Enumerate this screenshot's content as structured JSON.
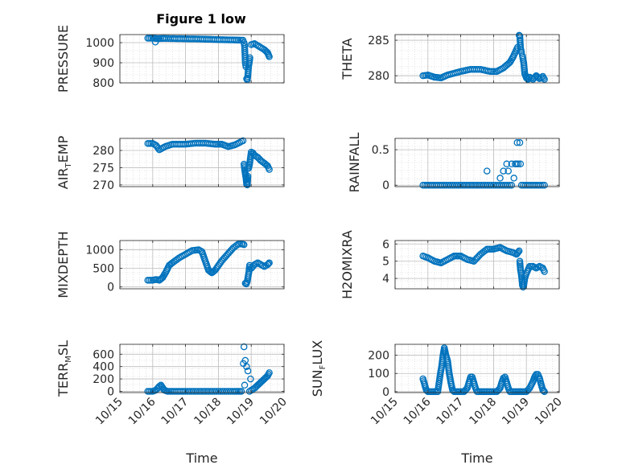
{
  "title": "Figure 1 low",
  "marker_color": "#0072bd",
  "xaxis": {
    "label": "Time",
    "range": [
      0,
      5
    ],
    "ticks": [
      0,
      1,
      2,
      3,
      4,
      5
    ],
    "tick_labels": [
      "10/15",
      "10/16",
      "10/17",
      "10/18",
      "10/19",
      "10/20"
    ]
  },
  "chart_data": [
    {
      "type": "scatter",
      "name": "pressure",
      "ylabel": "PRESSURE",
      "ylim": [
        800,
        1040
      ],
      "yticks": [
        800,
        900,
        1000
      ],
      "ytick_labels": [
        "800",
        "900",
        "1000"
      ],
      "segments": [
        {
          "x": [
            0.85,
            1.0,
            1.15,
            1.35,
            1.6,
            2.0,
            2.4,
            2.8,
            3.2,
            3.55,
            3.75
          ],
          "y": [
            1022,
            1022,
            1020,
            1021,
            1020,
            1019,
            1018,
            1016,
            1014,
            1013,
            1012
          ]
        },
        {
          "x": [
            3.78,
            3.8,
            3.82,
            3.84
          ],
          "y": [
            1000,
            980,
            900,
            880
          ]
        },
        {
          "x": [
            3.86,
            3.88,
            3.9,
            3.92,
            3.94,
            3.96
          ],
          "y": [
            820,
            815,
            840,
            880,
            900,
            925
          ]
        },
        {
          "x": [
            4.0,
            4.1,
            4.2,
            4.3,
            4.4,
            4.5,
            4.55
          ],
          "y": [
            990,
            995,
            985,
            975,
            965,
            950,
            930
          ]
        }
      ],
      "points": [
        {
          "x": 1.08,
          "y": 1003
        }
      ]
    },
    {
      "type": "scatter",
      "name": "theta",
      "ylabel": "THETA",
      "ylim": [
        279,
        285.8
      ],
      "yticks": [
        280,
        285
      ],
      "ytick_labels": [
        "280",
        "285"
      ],
      "segments": [
        {
          "x": [
            0.85,
            1.0,
            1.2,
            1.4,
            1.6,
            2.0,
            2.3,
            2.6,
            2.9,
            3.1,
            3.3,
            3.5,
            3.6,
            3.68,
            3.73
          ],
          "y": [
            280.0,
            280.1,
            279.8,
            279.7,
            280.1,
            280.6,
            280.9,
            280.9,
            280.6,
            280.6,
            281.1,
            281.9,
            282.7,
            283.5,
            284.0
          ]
        },
        {
          "x": [
            3.78,
            3.8,
            3.82,
            3.85
          ],
          "y": [
            285.7,
            285.6,
            284.0,
            283.3
          ]
        },
        {
          "x": [
            3.88,
            3.92,
            3.95,
            4.0,
            4.05,
            4.1,
            4.2,
            4.3,
            4.4,
            4.5,
            4.55
          ],
          "y": [
            282.8,
            281.8,
            280.3,
            279.7,
            279.5,
            279.8,
            279.5,
            280.0,
            279.6,
            279.9,
            279.5
          ]
        }
      ],
      "points": []
    },
    {
      "type": "scatter",
      "name": "air_temp",
      "ylabel": "AIR_TEMP",
      "ylim": [
        269.5,
        283.5
      ],
      "yticks": [
        270,
        275,
        280
      ],
      "ytick_labels": [
        "270",
        "275",
        "280"
      ],
      "segments": [
        {
          "x": [
            0.85,
            1.0,
            1.1,
            1.2,
            1.4,
            1.6,
            2.0,
            2.3,
            2.6,
            2.9,
            3.1,
            3.3,
            3.5,
            3.65,
            3.7,
            3.75
          ],
          "y": [
            282.0,
            282.0,
            281.5,
            280.2,
            281.2,
            281.8,
            281.8,
            282.1,
            282.1,
            281.8,
            281.8,
            281.1,
            281.6,
            282.3,
            282.6,
            282.8
          ]
        },
        {
          "x": [
            3.78,
            3.8,
            3.82,
            3.84,
            3.86,
            3.88,
            3.9
          ],
          "y": [
            276.0,
            274.5,
            273.2,
            272.0,
            270.2,
            270.0,
            272.5
          ]
        },
        {
          "x": [
            3.92,
            3.95,
            4.0,
            4.05,
            4.1,
            4.2,
            4.3,
            4.4,
            4.5,
            4.55
          ],
          "y": [
            274.8,
            276.0,
            279.5,
            279.3,
            278.6,
            278.0,
            277.0,
            276.3,
            275.5,
            274.5
          ]
        }
      ],
      "points": []
    },
    {
      "type": "scatter",
      "name": "rainfall",
      "ylabel": "RAINFALL",
      "ylim": [
        -0.02,
        0.66
      ],
      "yticks": [
        0,
        0.5
      ],
      "ytick_labels": [
        "0",
        "0.5"
      ],
      "segments": [
        {
          "x": [
            0.85,
            1.5,
            2.0,
            2.5,
            3.0,
            3.55
          ],
          "y": [
            0,
            0,
            0,
            0,
            0,
            0
          ]
        },
        {
          "x": [
            3.85,
            4.2,
            4.55
          ],
          "y": [
            0,
            0,
            0
          ]
        }
      ],
      "points": [
        {
          "x": 2.8,
          "y": 0.2
        },
        {
          "x": 3.2,
          "y": 0.1
        },
        {
          "x": 3.3,
          "y": 0.2
        },
        {
          "x": 3.4,
          "y": 0.3
        },
        {
          "x": 3.45,
          "y": 0.2
        },
        {
          "x": 3.55,
          "y": 0.3
        },
        {
          "x": 3.62,
          "y": 0.1
        },
        {
          "x": 3.66,
          "y": 0.3
        },
        {
          "x": 3.7,
          "y": 0.3
        },
        {
          "x": 3.72,
          "y": 0.6
        },
        {
          "x": 3.75,
          "y": 0.3
        },
        {
          "x": 3.8,
          "y": 0.6
        },
        {
          "x": 3.82,
          "y": 0.3
        }
      ]
    },
    {
      "type": "scatter",
      "name": "mixdepth",
      "ylabel": "MIXDEPTH",
      "ylim": [
        -50,
        1250
      ],
      "yticks": [
        0,
        500,
        1000
      ],
      "ytick_labels": [
        "0",
        "500",
        "1000"
      ],
      "segments": [
        {
          "x": [
            0.85,
            1.0,
            1.1,
            1.2,
            1.3,
            1.4,
            1.5,
            1.6,
            1.8,
            2.0,
            2.2,
            2.4,
            2.5,
            2.6,
            2.7,
            2.8,
            2.9,
            3.1,
            3.3,
            3.45,
            3.6,
            3.7,
            3.78
          ],
          "y": [
            180,
            180,
            200,
            180,
            250,
            400,
            580,
            650,
            780,
            880,
            980,
            1000,
            950,
            700,
            450,
            380,
            450,
            700,
            900,
            1050,
            1150,
            1160,
            1140
          ]
        },
        {
          "x": [
            3.82,
            3.85,
            3.88,
            3.9,
            3.93,
            3.95
          ],
          "y": [
            100,
            80,
            150,
            250,
            400,
            580
          ]
        },
        {
          "x": [
            4.0,
            4.1,
            4.2,
            4.3,
            4.4,
            4.5,
            4.55
          ],
          "y": [
            500,
            600,
            650,
            600,
            550,
            600,
            650
          ]
        }
      ],
      "points": []
    },
    {
      "type": "scatter",
      "name": "h2omixra",
      "ylabel": "H2OMIXRA",
      "ylim": [
        3.4,
        6.2
      ],
      "yticks": [
        4,
        5,
        6
      ],
      "ytick_labels": [
        "4",
        "5",
        "6"
      ],
      "segments": [
        {
          "x": [
            0.85,
            1.0,
            1.2,
            1.4,
            1.6,
            1.8,
            2.0,
            2.2,
            2.4,
            2.6,
            2.8,
            3.0,
            3.2,
            3.4,
            3.6,
            3.7,
            3.78
          ],
          "y": [
            5.3,
            5.2,
            5.0,
            4.9,
            5.1,
            5.3,
            5.3,
            5.1,
            5.0,
            5.4,
            5.7,
            5.7,
            5.8,
            5.6,
            5.5,
            5.4,
            5.6
          ]
        },
        {
          "x": [
            3.8,
            3.82,
            3.84,
            3.86,
            3.88,
            3.9
          ],
          "y": [
            5.0,
            4.5,
            4.3,
            4.0,
            3.6,
            3.5
          ]
        },
        {
          "x": [
            3.92,
            3.95,
            4.0,
            4.05,
            4.1,
            4.2,
            4.3,
            4.4,
            4.5,
            4.55
          ],
          "y": [
            3.6,
            4.0,
            4.3,
            4.5,
            4.7,
            4.7,
            4.6,
            4.7,
            4.6,
            4.4
          ]
        }
      ],
      "points": []
    },
    {
      "type": "scatter",
      "name": "terr_msl",
      "ylabel": "TERR_MSL",
      "ylim": [
        -20,
        760
      ],
      "yticks": [
        0,
        200,
        400,
        600
      ],
      "ytick_labels": [
        "0",
        "200",
        "400",
        "600"
      ],
      "segments": [
        {
          "x": [
            0.85,
            1.0,
            1.1,
            1.2,
            1.25,
            1.3,
            1.35,
            1.45,
            1.6,
            2.0,
            2.5,
            3.0,
            3.5,
            3.7
          ],
          "y": [
            0,
            0,
            20,
            80,
            100,
            60,
            20,
            0,
            0,
            0,
            0,
            0,
            0,
            0
          ]
        },
        {
          "x": [
            3.95,
            4.1,
            4.2,
            4.3,
            4.4,
            4.5,
            4.55
          ],
          "y": [
            0,
            50,
            100,
            150,
            200,
            250,
            300
          ]
        }
      ],
      "points": [
        {
          "x": 3.78,
          "y": 720
        },
        {
          "x": 3.76,
          "y": 450
        },
        {
          "x": 3.82,
          "y": 500
        },
        {
          "x": 3.86,
          "y": 400
        },
        {
          "x": 3.9,
          "y": 330
        },
        {
          "x": 3.98,
          "y": 200
        },
        {
          "x": 3.8,
          "y": 100
        }
      ]
    },
    {
      "type": "scatter",
      "name": "sun_flux",
      "ylabel": "SUN_FLUX",
      "ylim": [
        -5,
        260
      ],
      "yticks": [
        0,
        100,
        200
      ],
      "ytick_labels": [
        "0",
        "100",
        "200"
      ],
      "segments": [
        {
          "x": [
            0.85,
            0.9,
            0.95,
            1.0,
            1.1,
            1.2,
            1.3,
            1.38,
            1.42,
            1.46,
            1.5,
            1.55,
            1.6,
            1.65,
            1.7,
            1.75,
            1.8,
            2.0,
            2.1,
            2.2,
            2.25,
            2.3,
            2.35,
            2.4,
            2.45,
            2.5,
            2.6,
            2.8,
            3.0,
            3.1,
            3.2,
            3.25,
            3.3,
            3.35,
            3.4,
            3.45,
            3.5,
            3.6,
            3.8,
            4.0,
            4.1,
            4.2,
            4.25,
            4.3,
            4.35,
            4.4,
            4.45,
            4.5,
            4.55
          ],
          "y": [
            70,
            40,
            10,
            0,
            0,
            0,
            0,
            100,
            140,
            200,
            240,
            200,
            170,
            100,
            50,
            10,
            0,
            0,
            0,
            20,
            50,
            80,
            80,
            50,
            20,
            0,
            0,
            0,
            0,
            0,
            20,
            50,
            75,
            80,
            50,
            20,
            0,
            0,
            0,
            0,
            20,
            55,
            80,
            95,
            95,
            75,
            40,
            10,
            0
          ]
        }
      ],
      "points": []
    }
  ]
}
